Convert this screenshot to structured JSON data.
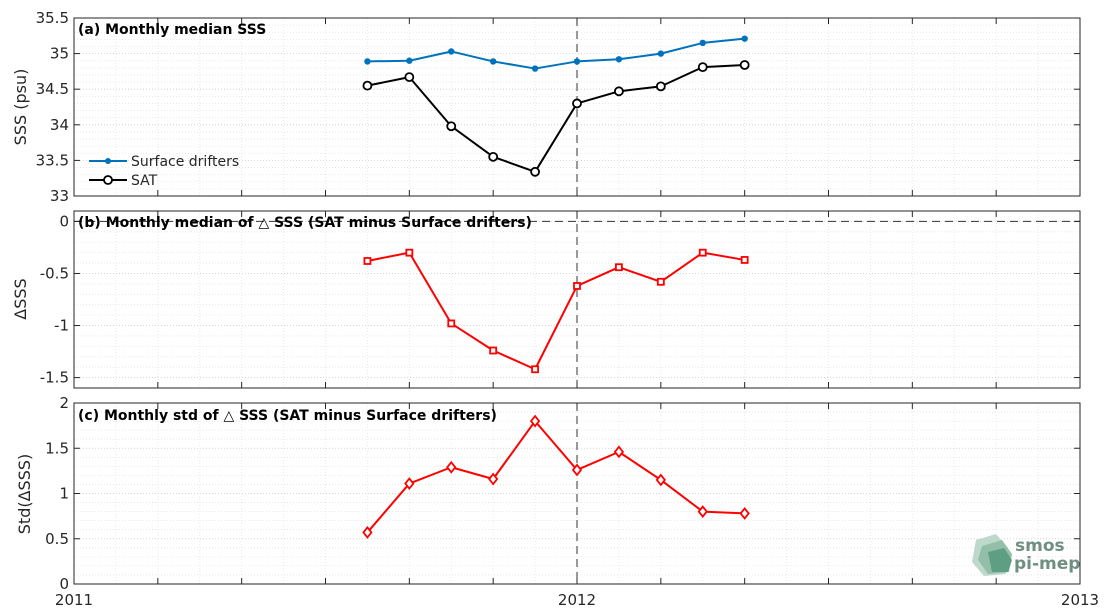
{
  "logo": {
    "line1": "smos",
    "line2": "pi-mep"
  },
  "x_ticks": [
    "2011",
    "2012",
    "2013"
  ],
  "chart_data": [
    {
      "type": "line",
      "title": "(a) Monthly median SSS",
      "xlabel": "",
      "ylabel": "SSS (psu)",
      "xlim": [
        "2011-01",
        "2013-01"
      ],
      "ylim": [
        33,
        35.5
      ],
      "yticks": [
        "33",
        "33.5",
        "34",
        "34.5",
        "35",
        "35.5"
      ],
      "grid": true,
      "legend_position": "bottom-left",
      "x": [
        "2011-08",
        "2011-09",
        "2011-10",
        "2011-11",
        "2011-12",
        "2012-01",
        "2012-02",
        "2012-03",
        "2012-04",
        "2012-05"
      ],
      "series": [
        {
          "name": "Surface drifters",
          "color": "#0072bd",
          "marker": "dot",
          "values": [
            34.89,
            34.9,
            35.03,
            34.89,
            34.79,
            34.89,
            34.92,
            35.0,
            35.15,
            35.21
          ]
        },
        {
          "name": "SAT",
          "color": "#000000",
          "marker": "circle",
          "values": [
            34.55,
            34.67,
            33.98,
            33.55,
            33.34,
            34.3,
            34.47,
            34.54,
            34.81,
            34.84
          ]
        }
      ]
    },
    {
      "type": "line",
      "title": "(b) Monthly median of △ SSS (SAT minus Surface drifters)",
      "xlabel": "",
      "ylabel": "ΔSSS",
      "xlim": [
        "2011-01",
        "2013-01"
      ],
      "ylim": [
        -1.6,
        0.1
      ],
      "yticks": [
        "-1.5",
        "-1",
        "-0.5",
        "0"
      ],
      "grid": true,
      "zero_line": true,
      "x": [
        "2011-08",
        "2011-09",
        "2011-10",
        "2011-11",
        "2011-12",
        "2012-01",
        "2012-02",
        "2012-03",
        "2012-04",
        "2012-05"
      ],
      "series": [
        {
          "color": "#ff0000",
          "marker": "square",
          "values": [
            -0.38,
            -0.3,
            -0.98,
            -1.24,
            -1.42,
            -0.62,
            -0.44,
            -0.58,
            -0.3,
            -0.37
          ]
        }
      ]
    },
    {
      "type": "line",
      "title": "(c) Monthly std of △ SSS (SAT minus Surface drifters)",
      "xlabel": "",
      "ylabel": "Std(ΔSSS)",
      "xlim": [
        "2011-01",
        "2013-01"
      ],
      "ylim": [
        0,
        2
      ],
      "yticks": [
        "0",
        "0.5",
        "1",
        "1.5",
        "2"
      ],
      "grid": true,
      "x": [
        "2011-08",
        "2011-09",
        "2011-10",
        "2011-11",
        "2011-12",
        "2012-01",
        "2012-02",
        "2012-03",
        "2012-04",
        "2012-05"
      ],
      "series": [
        {
          "color": "#ff0000",
          "marker": "diamond",
          "values": [
            0.57,
            1.11,
            1.29,
            1.16,
            1.8,
            1.26,
            1.46,
            1.15,
            0.8,
            0.78
          ]
        }
      ]
    }
  ]
}
